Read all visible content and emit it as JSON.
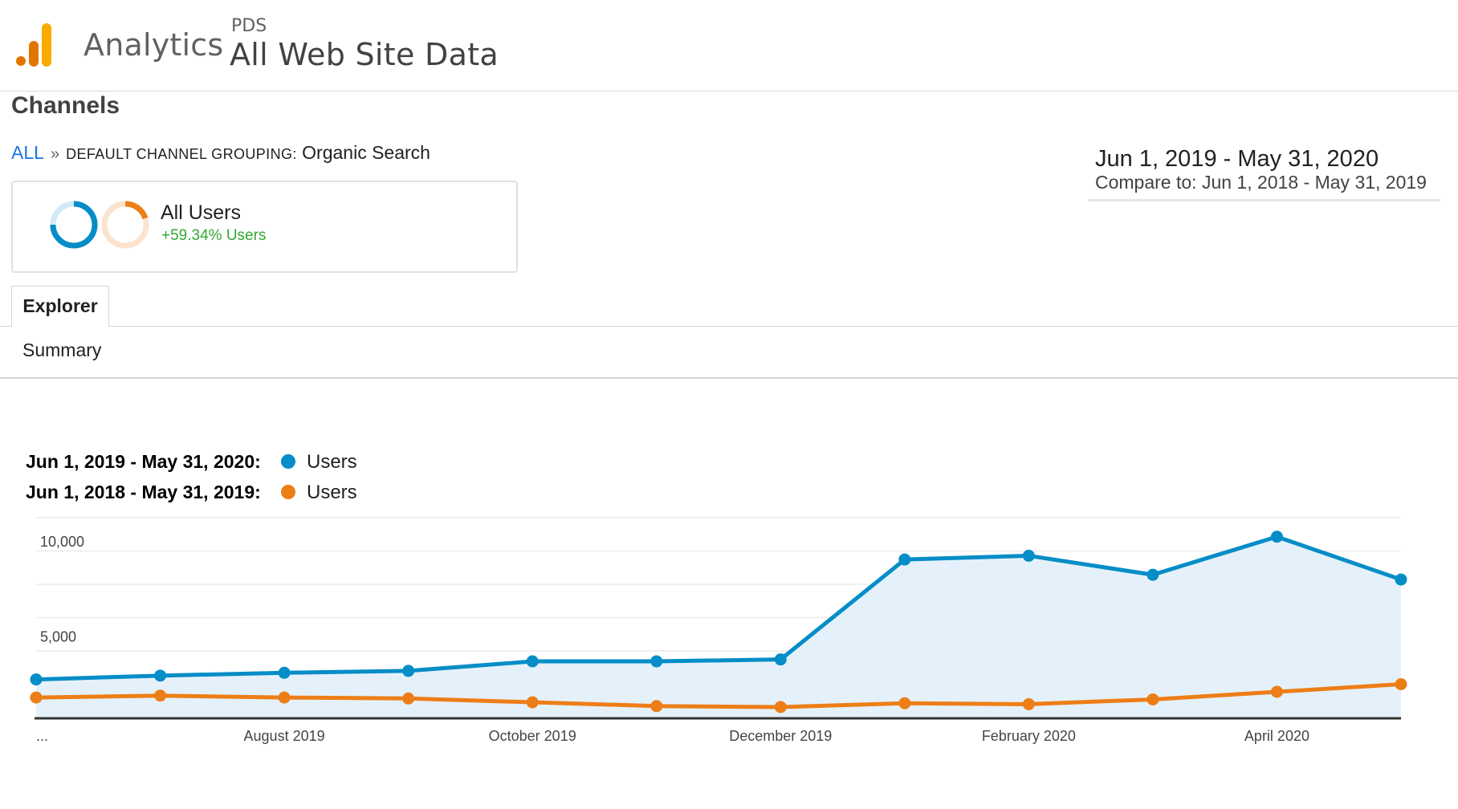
{
  "header": {
    "app_name": "Analytics",
    "account": "PDS",
    "property": "All Web Site Data"
  },
  "page": {
    "title": "Channels"
  },
  "breadcrumb": {
    "root": "ALL",
    "separator": "»",
    "dimension": "DEFAULT CHANNEL GROUPING:",
    "value": "Organic Search"
  },
  "date_range": {
    "main": "Jun 1, 2019 - May 31, 2020",
    "compare": "Compare to: Jun 1, 2018 - May 31, 2019"
  },
  "segment": {
    "name": "All Users",
    "delta": "+59.34% Users"
  },
  "tabs": {
    "explorer": "Explorer",
    "summary": "Summary"
  },
  "legend": [
    {
      "period": "Jun 1, 2019 - May 31, 2020:",
      "metric": "Users",
      "color": "#058dc7"
    },
    {
      "period": "Jun 1, 2018 - May 31, 2019:",
      "metric": "Users",
      "color": "#ed7e17"
    }
  ],
  "colors": {
    "current": "#058dc7",
    "previous": "#ed7e17",
    "area": "#e5f1fa",
    "brand_dark": "#e37400",
    "brand_light": "#f9ab00",
    "positive": "#31a831"
  },
  "chart_data": {
    "type": "line",
    "y_ticks": [
      {
        "value": 10000,
        "label": "10,000"
      },
      {
        "value": 5000,
        "label": "5,000"
      }
    ],
    "ylim": [
      0,
      10500
    ],
    "grid": true,
    "x_ticks": [
      {
        "index": 0,
        "label": "..."
      },
      {
        "index": 2,
        "label": "August 2019"
      },
      {
        "index": 4,
        "label": "October 2019"
      },
      {
        "index": 6,
        "label": "December 2019"
      },
      {
        "index": 8,
        "label": "February 2020"
      },
      {
        "index": 10,
        "label": "April 2020"
      }
    ],
    "x": [
      "June 2019",
      "July 2019",
      "August 2019",
      "September 2019",
      "October 2019",
      "November 2019",
      "December 2019",
      "January 2020",
      "February 2020",
      "March 2020",
      "April 2020",
      "May 2020"
    ],
    "series": [
      {
        "name": "Users",
        "period": "Jun 1, 2019 - May 31, 2020",
        "values": [
          2000,
          2200,
          2350,
          2450,
          2950,
          2950,
          3050,
          8300,
          8500,
          7500,
          9500,
          7250
        ]
      },
      {
        "name": "Users",
        "period": "Jun 1, 2018 - May 31, 2019",
        "values": [
          1050,
          1150,
          1050,
          1000,
          800,
          600,
          550,
          750,
          700,
          950,
          1350,
          1750
        ]
      }
    ]
  }
}
